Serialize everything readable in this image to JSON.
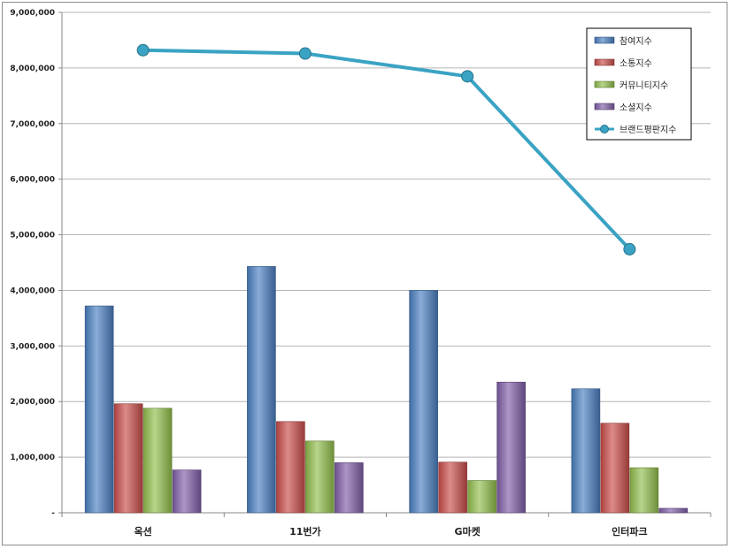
{
  "chart_data": {
    "type": "bar",
    "categories": [
      "옥션",
      "11번가",
      "G마켓",
      "인터파크"
    ],
    "series": [
      {
        "name": "참여지수",
        "kind": "bar",
        "color": "#4a7fc1",
        "values": [
          3720000,
          4430000,
          4000000,
          2230000
        ]
      },
      {
        "name": "소통지수",
        "kind": "bar",
        "color": "#c94d4a",
        "values": [
          1960000,
          1640000,
          910000,
          1610000
        ]
      },
      {
        "name": "커뮤니티지수",
        "kind": "bar",
        "color": "#92be4c",
        "values": [
          1880000,
          1290000,
          580000,
          810000
        ]
      },
      {
        "name": "소셜지수",
        "kind": "bar",
        "color": "#7f5ea7",
        "values": [
          770000,
          900000,
          2350000,
          80000
        ]
      },
      {
        "name": "브랜드평판지수",
        "kind": "line",
        "color": "#3aa3c4",
        "values": [
          8320000,
          8260000,
          7850000,
          4740000
        ]
      }
    ],
    "yticks": [
      "-",
      "1,000,000",
      "2,000,000",
      "3,000,000",
      "4,000,000",
      "5,000,000",
      "6,000,000",
      "7,000,000",
      "8,000,000",
      "9,000,000"
    ],
    "ylim": [
      0,
      9000000
    ],
    "grid": true,
    "legend": "top-right"
  }
}
